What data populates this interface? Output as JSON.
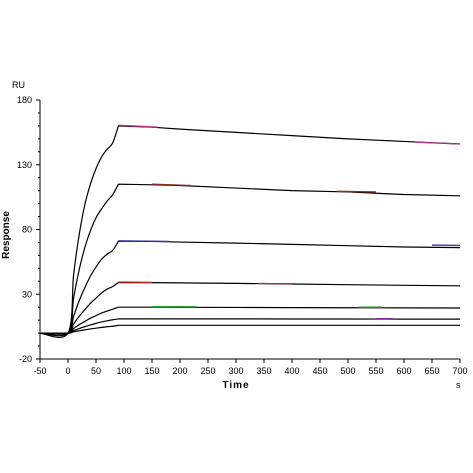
{
  "chart_data": {
    "type": "line",
    "title": "",
    "xlabel": "Time",
    "ylabel": "Response",
    "x_unit": "s",
    "y_unit": "RU",
    "xlim": [
      -50,
      700
    ],
    "ylim": [
      -20,
      180
    ],
    "xticks": [
      -50,
      0,
      50,
      100,
      150,
      200,
      250,
      300,
      350,
      400,
      450,
      500,
      550,
      600,
      650,
      700
    ],
    "yticks": [
      -20,
      30,
      80,
      130,
      180
    ],
    "grid": false,
    "legend": "none",
    "series": [
      {
        "color": "#000000",
        "x": [
          -50,
          0,
          10,
          20,
          30,
          40,
          50,
          60,
          70,
          80,
          90,
          150,
          200,
          300,
          400,
          500,
          600,
          700
        ],
        "y": [
          0,
          0,
          45,
          76,
          99,
          115,
          127,
          136,
          142,
          147,
          160,
          159,
          157.5,
          155,
          152.5,
          150,
          148,
          146
        ]
      },
      {
        "color": "#000000",
        "x": [
          -50,
          0,
          10,
          20,
          30,
          40,
          50,
          60,
          70,
          80,
          90,
          150,
          200,
          300,
          400,
          500,
          600,
          700
        ],
        "y": [
          0,
          0,
          27,
          49,
          66,
          79,
          89,
          96,
          102,
          107,
          115,
          114.5,
          114,
          112,
          110,
          109,
          107,
          106
        ]
      },
      {
        "color": "#000000",
        "x": [
          -50,
          0,
          10,
          20,
          30,
          40,
          50,
          60,
          70,
          80,
          90,
          150,
          200,
          300,
          400,
          500,
          600,
          700
        ],
        "y": [
          0,
          0,
          13,
          25,
          35,
          44,
          51,
          57,
          61,
          64,
          71,
          70.8,
          70.3,
          69.5,
          68.5,
          67.5,
          66.5,
          66
        ]
      },
      {
        "color": "#000000",
        "x": [
          -50,
          0,
          10,
          20,
          30,
          40,
          50,
          60,
          70,
          80,
          90,
          150,
          200,
          300,
          400,
          500,
          600,
          700
        ],
        "y": [
          0,
          0,
          7,
          13,
          18,
          23,
          27,
          31,
          34,
          36,
          39,
          39,
          38.8,
          38.4,
          37.9,
          37.4,
          36.9,
          36.5
        ]
      },
      {
        "color": "#000000",
        "x": [
          -50,
          0,
          10,
          20,
          30,
          40,
          50,
          60,
          70,
          80,
          90,
          150,
          200,
          300,
          400,
          500,
          600,
          700
        ],
        "y": [
          0,
          0,
          3.5,
          6.5,
          9,
          11.5,
          13.5,
          15.5,
          17,
          18.5,
          20,
          20,
          19.9,
          19.8,
          19.7,
          19.6,
          19.5,
          19.4
        ]
      },
      {
        "color": "#000000",
        "x": [
          -50,
          0,
          10,
          20,
          30,
          40,
          50,
          60,
          70,
          80,
          90,
          150,
          200,
          300,
          400,
          500,
          600,
          700
        ],
        "y": [
          0,
          0,
          2,
          3.5,
          5,
          6.3,
          7.5,
          8.6,
          9.5,
          10.3,
          11,
          11,
          11,
          11,
          10.9,
          10.9,
          10.8,
          10.8
        ]
      },
      {
        "color": "#000000",
        "x": [
          -50,
          0,
          10,
          20,
          30,
          40,
          50,
          60,
          70,
          80,
          90,
          150,
          200,
          300,
          400,
          500,
          600,
          700
        ],
        "y": [
          0,
          0,
          1,
          1.8,
          2.5,
          3.2,
          3.8,
          4.4,
          4.9,
          5.3,
          6,
          6,
          6,
          6,
          6,
          6,
          6,
          6
        ]
      }
    ],
    "fit_overlays": [
      {
        "color": "#b0307a",
        "x": [
          90,
          160
        ],
        "y": [
          160.5,
          159
        ]
      },
      {
        "color": "#b0307a",
        "x": [
          620,
          700
        ],
        "y": [
          147.5,
          146
        ]
      },
      {
        "color": "#8b2d1a",
        "x": [
          150,
          220
        ],
        "y": [
          115,
          114
        ]
      },
      {
        "color": "#8b2d1a",
        "x": [
          480,
          550
        ],
        "y": [
          109.5,
          109
        ]
      },
      {
        "color": "#3a3aa8",
        "x": [
          90,
          180
        ],
        "y": [
          71.3,
          70.8
        ]
      },
      {
        "color": "#3a3aa8",
        "x": [
          650,
          700
        ],
        "y": [
          68,
          67.7
        ]
      },
      {
        "color": "#c0281e",
        "x": [
          90,
          150
        ],
        "y": [
          39.4,
          39.2
        ]
      },
      {
        "color": "#c0281e",
        "x": [
          340,
          400
        ],
        "y": [
          38.3,
          38.1
        ]
      },
      {
        "color": "#1a9b2a",
        "x": [
          150,
          230
        ],
        "y": [
          20.4,
          20.3
        ]
      },
      {
        "color": "#1a9b2a",
        "x": [
          520,
          560
        ],
        "y": [
          20,
          20
        ]
      },
      {
        "color": "#7a2a9a",
        "x": [
          550,
          580
        ],
        "y": [
          11.2,
          11.2
        ]
      }
    ]
  }
}
